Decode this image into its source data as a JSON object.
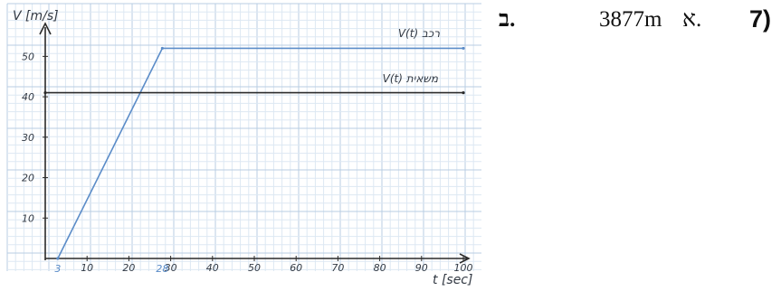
{
  "question": {
    "number": "7)",
    "part_a": {
      "label": "א.",
      "value": "3877m"
    },
    "part_b": {
      "label": "ב."
    }
  },
  "chart_data": {
    "type": "line",
    "xlabel": "t [sec]",
    "ylabel": "V [m/s]",
    "xlim": [
      0,
      100
    ],
    "ylim": [
      0,
      55
    ],
    "x_ticks": [
      "10",
      "20",
      "30",
      "40",
      "50",
      "60",
      "70",
      "80",
      "90",
      "100"
    ],
    "y_ticks": [
      "10",
      "20",
      "30",
      "40",
      "50"
    ],
    "x_marks": [
      "3",
      "28"
    ],
    "grid": true,
    "series": [
      {
        "name": "V(t) רכב",
        "color": "#5b8cc8",
        "points": [
          [
            3,
            0
          ],
          [
            28,
            52
          ],
          [
            100,
            52
          ]
        ]
      },
      {
        "name": "V(t) משאית",
        "color": "#2a2a2a",
        "points": [
          [
            0,
            41
          ],
          [
            100,
            41
          ]
        ]
      }
    ]
  }
}
